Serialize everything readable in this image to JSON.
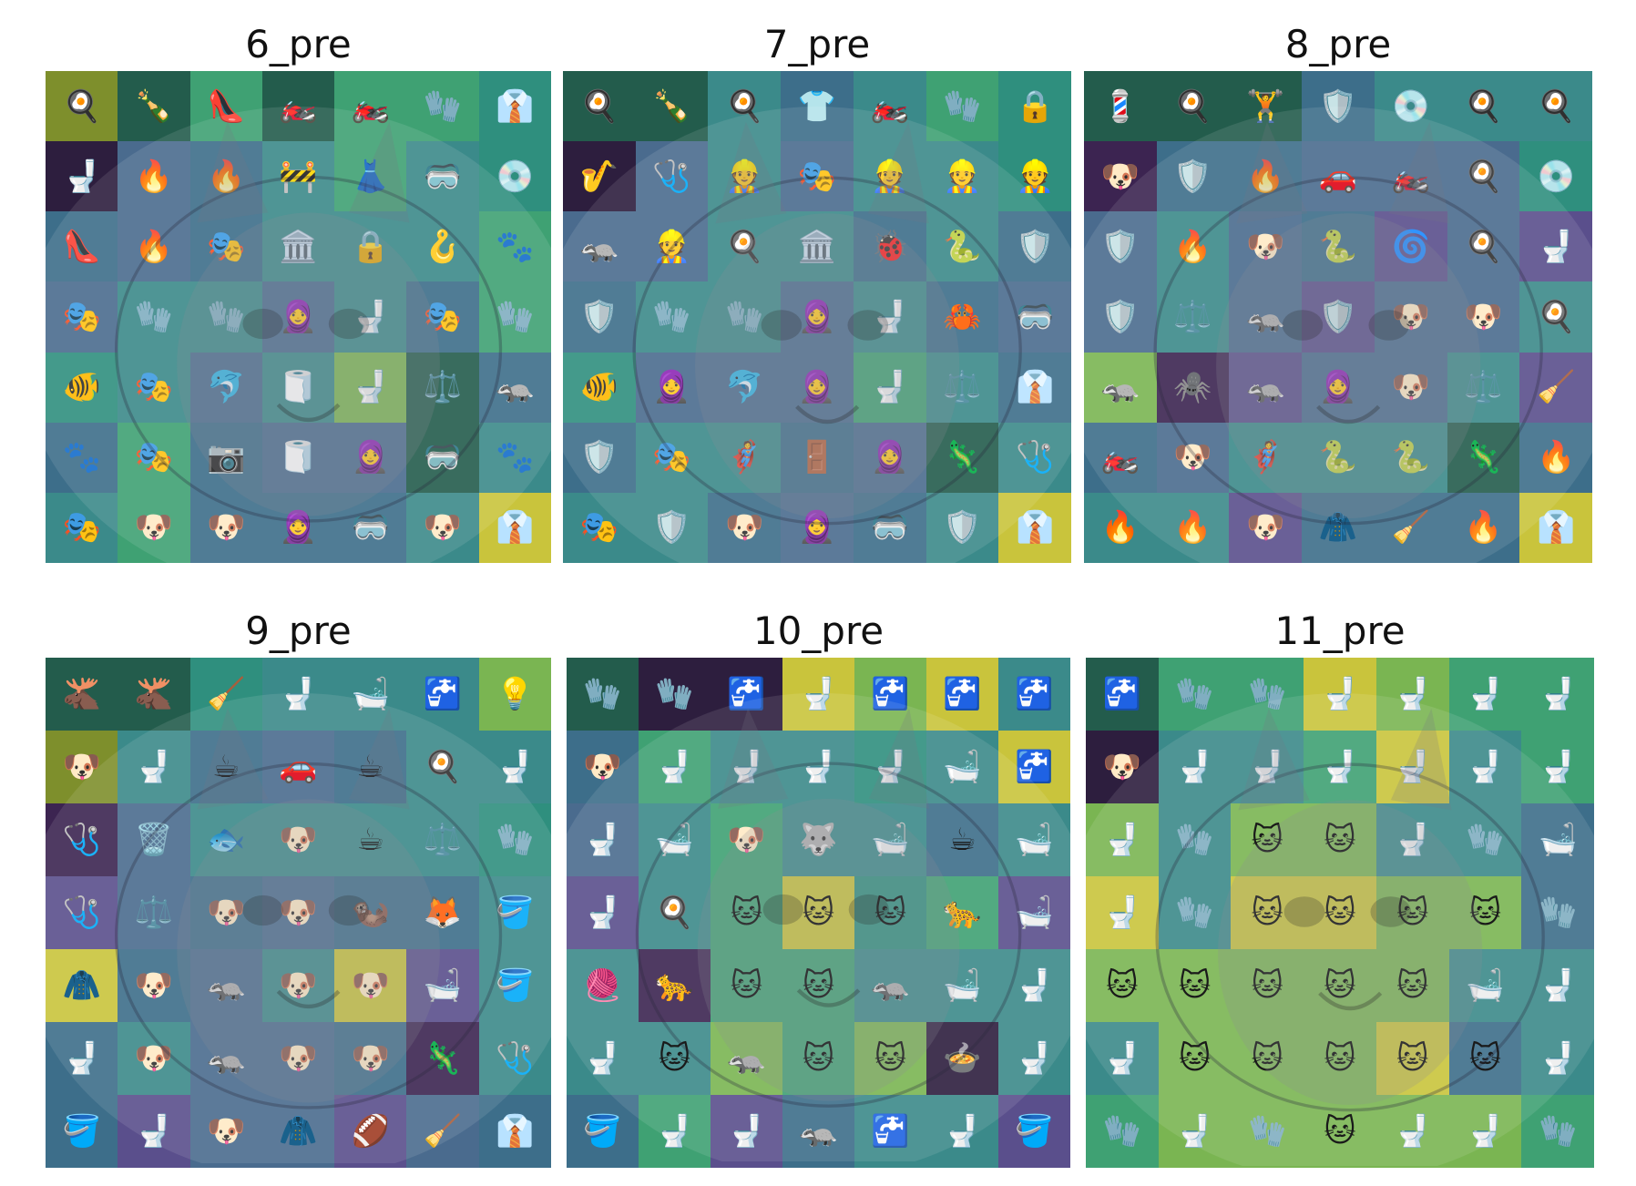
{
  "colors": {
    "y": "#c9c43c",
    "yg": "#7ab552",
    "g": "#3fa173",
    "tg": "#2f8f7e",
    "t": "#3b8a8a",
    "b": "#3d6e8a",
    "sb": "#4a6b8e",
    "pu": "#5a4f8c",
    "dp": "#3c2451",
    "dk": "#2d1e3e",
    "dg": "#235c4c",
    "ol": "#7e8f2c"
  },
  "panels": [
    {
      "title": "6_pre",
      "cells": [
        [
          "🍳",
          "🍾",
          "👠",
          "🏍️",
          "🏍️",
          "🧤",
          "👔"
        ],
        [
          "🚽",
          "🔥",
          "🔥",
          "🚧",
          "👗",
          "🥽",
          "💿"
        ],
        [
          "👠",
          "🔥",
          "🎭",
          "🏛️",
          "🔒",
          "🪝",
          "🐾"
        ],
        [
          "🎭",
          "🧤",
          "🧤",
          "🧕",
          "🚽",
          "🎭",
          "🧤"
        ],
        [
          "🐠",
          "🎭",
          "🐬",
          "🧻",
          "🚽",
          "⚖️",
          "🦡"
        ],
        [
          "🐾",
          "🎭",
          "📷",
          "🧻",
          "🧕",
          "🥽",
          "🐾"
        ],
        [
          "🎭",
          "🐶",
          "🐶",
          "🧕",
          "🥽",
          "🐶",
          "👔"
        ]
      ],
      "shades": [
        [
          "ol",
          "dg",
          "g",
          "dg",
          "g",
          "g",
          "tg"
        ],
        [
          "dk",
          "sb",
          "b",
          "t",
          "g",
          "t",
          "tg"
        ],
        [
          "b",
          "sb",
          "b",
          "t",
          "t",
          "t",
          "g"
        ],
        [
          "sb",
          "t",
          "t",
          "sb",
          "t",
          "b",
          "g"
        ],
        [
          "tg",
          "t",
          "sb",
          "t",
          "yg",
          "dg",
          "b"
        ],
        [
          "b",
          "g",
          "b",
          "sb",
          "sb",
          "dg",
          "t"
        ],
        [
          "t",
          "g",
          "b",
          "b",
          "b",
          "t",
          "y"
        ]
      ]
    },
    {
      "title": "7_pre",
      "cells": [
        [
          "🍳",
          "🍾",
          "🍳",
          "👕",
          "🏍️",
          "🧤",
          "🔒"
        ],
        [
          "🎷",
          "🩺",
          "👷",
          "🎭",
          "👷",
          "👷",
          "👷"
        ],
        [
          "🦡",
          "👷",
          "🍳",
          "🏛️",
          "🐞",
          "🐍",
          "🛡️"
        ],
        [
          "🛡️",
          "🧤",
          "🧤",
          "🧕",
          "🚽",
          "🦀",
          "🥽"
        ],
        [
          "🐠",
          "🧕",
          "🐬",
          "🧕",
          "🚽",
          "⚖️",
          "👔"
        ],
        [
          "🛡️",
          "🎭",
          "🦸",
          "🚪",
          "🧕",
          "🦎",
          "🩺"
        ],
        [
          "🎭",
          "🛡️",
          "🐶",
          "🧕",
          "🥽",
          "🛡️",
          "👔"
        ]
      ],
      "shades": [
        [
          "dg",
          "dg",
          "t",
          "b",
          "t",
          "g",
          "tg"
        ],
        [
          "dk",
          "sb",
          "t",
          "sb",
          "t",
          "t",
          "tg"
        ],
        [
          "sb",
          "sb",
          "t",
          "t",
          "b",
          "t",
          "b"
        ],
        [
          "b",
          "t",
          "t",
          "sb",
          "t",
          "b",
          "sb"
        ],
        [
          "tg",
          "sb",
          "sb",
          "sb",
          "g",
          "t",
          "b"
        ],
        [
          "b",
          "t",
          "t",
          "b",
          "sb",
          "dg",
          "t"
        ],
        [
          "t",
          "t",
          "b",
          "sb",
          "b",
          "t",
          "y"
        ]
      ]
    },
    {
      "title": "8_pre",
      "cells": [
        [
          "💈",
          "🍳",
          "🏋️",
          "🛡️",
          "💿",
          "🍳",
          "🍳"
        ],
        [
          "🐶",
          "🛡️",
          "🔥",
          "🚗",
          "🏍️",
          "🍳",
          "💿"
        ],
        [
          "🛡️",
          "🔥",
          "🐶",
          "🐍",
          "🌀",
          "🍳",
          "🚽"
        ],
        [
          "🛡️",
          "⚖️",
          "🦡",
          "🛡️",
          "🐶",
          "🐶",
          "🍳"
        ],
        [
          "🦡",
          "🕷️",
          "🦡",
          "🧕",
          "🐶",
          "⚖️",
          "🧹"
        ],
        [
          "🏍️",
          "🐶",
          "🦸",
          "🐍",
          "🐍",
          "🦎",
          "🔥"
        ],
        [
          "🔥",
          "🔥",
          "🐶",
          "🧥",
          "🧹",
          "🔥",
          "👔"
        ]
      ],
      "shades": [
        [
          "dg",
          "dg",
          "dg",
          "b",
          "t",
          "t",
          "t"
        ],
        [
          "dp",
          "b",
          "b",
          "sb",
          "sb",
          "sb",
          "tg"
        ],
        [
          "sb",
          "t",
          "sb",
          "b",
          "pu",
          "sb",
          "pu"
        ],
        [
          "sb",
          "t",
          "sb",
          "pu",
          "sb",
          "sb",
          "t"
        ],
        [
          "yg",
          "dp",
          "pu",
          "sb",
          "sb",
          "t",
          "pu"
        ],
        [
          "b",
          "sb",
          "t",
          "t",
          "t",
          "dg",
          "b"
        ],
        [
          "t",
          "t",
          "pu",
          "b",
          "b",
          "b",
          "y"
        ]
      ]
    },
    {
      "title": "9_pre",
      "cells": [
        [
          "🫎",
          "🫎",
          "🧹",
          "🚽",
          "🛁",
          "🚰",
          "💡"
        ],
        [
          "🐶",
          "🚽",
          "☕",
          "🚗",
          "☕",
          "🍳",
          "🚽"
        ],
        [
          "🩺",
          "🗑️",
          "🐟",
          "🐶",
          "☕",
          "⚖️",
          "🧤"
        ],
        [
          "🩺",
          "⚖️",
          "🐶",
          "🐶",
          "🦦",
          "🦊",
          "🪣"
        ],
        [
          "🧥",
          "🐶",
          "🦡",
          "🐶",
          "🐶",
          "🛁",
          "🪣"
        ],
        [
          "🚽",
          "🐶",
          "🦡",
          "🐶",
          "🐶",
          "🦎",
          "🩺"
        ],
        [
          "🪣",
          "🚽",
          "🐶",
          "🧥",
          "🏈",
          "🧹",
          "👔"
        ]
      ],
      "shades": [
        [
          "dg",
          "dg",
          "tg",
          "t",
          "t",
          "t",
          "yg"
        ],
        [
          "ol",
          "t",
          "b",
          "sb",
          "b",
          "t",
          "t"
        ],
        [
          "dp",
          "sb",
          "t",
          "t",
          "t",
          "t",
          "tg"
        ],
        [
          "pu",
          "sb",
          "b",
          "sb",
          "b",
          "b",
          "t"
        ],
        [
          "y",
          "b",
          "sb",
          "t",
          "y",
          "pu",
          "t"
        ],
        [
          "b",
          "t",
          "sb",
          "sb",
          "b",
          "dp",
          "t"
        ],
        [
          "b",
          "pu",
          "sb",
          "sb",
          "pu",
          "sb",
          "b"
        ]
      ]
    },
    {
      "title": "10_pre",
      "cells": [
        [
          "🧤",
          "🧤",
          "🚰",
          "🚽",
          "🚰",
          "🚰",
          "🚰"
        ],
        [
          "🐶",
          "🚽",
          "🚽",
          "🚽",
          "🚽",
          "🛁",
          "🚰"
        ],
        [
          "🚽",
          "🛁",
          "🐶",
          "🐺",
          "🛁",
          "☕",
          "🛁"
        ],
        [
          "🚽",
          "🍳",
          "🐱",
          "🐱",
          "🐱",
          "🐆",
          "🛁"
        ],
        [
          "🧶",
          "🐆",
          "🐱",
          "🐱",
          "🦡",
          "🛁",
          "🚽"
        ],
        [
          "🚽",
          "🐱",
          "🦡",
          "🐱",
          "🐱",
          "🍲",
          "🚽"
        ],
        [
          "🪣",
          "🚽",
          "🚽",
          "🦡",
          "🚰",
          "🚽",
          "🪣"
        ]
      ],
      "shades": [
        [
          "dg",
          "dk",
          "dk",
          "y",
          "yg",
          "y",
          "t"
        ],
        [
          "b",
          "g",
          "t",
          "t",
          "tg",
          "t",
          "y"
        ],
        [
          "sb",
          "t",
          "g",
          "t",
          "t",
          "b",
          "t"
        ],
        [
          "pu",
          "t",
          "g",
          "y",
          "tg",
          "g",
          "pu"
        ],
        [
          "t",
          "dp",
          "g",
          "g",
          "t",
          "t",
          "t"
        ],
        [
          "t",
          "t",
          "yg",
          "g",
          "yg",
          "dk",
          "t"
        ],
        [
          "b",
          "g",
          "pu",
          "b",
          "t",
          "t",
          "pu"
        ]
      ]
    },
    {
      "title": "11_pre",
      "cells": [
        [
          "🚰",
          "🧤",
          "🧤",
          "🚽",
          "🚽",
          "🚽",
          "🚽"
        ],
        [
          "🐶",
          "🚽",
          "🚽",
          "🚽",
          "🚽",
          "🚽",
          "🚽"
        ],
        [
          "🚽",
          "🧤",
          "🐱",
          "🐱",
          "🚽",
          "🧤",
          "🛁"
        ],
        [
          "🚽",
          "🧤",
          "🐱",
          "🐱",
          "🐱",
          "🐱",
          "🧤"
        ],
        [
          "🐱",
          "🐱",
          "🐱",
          "🐱",
          "🐱",
          "🛁",
          "🚽"
        ],
        [
          "🚽",
          "🐱",
          "🐱",
          "🐱",
          "🐱",
          "🐱",
          "🚽"
        ],
        [
          "🧤",
          "🚽",
          "🧤",
          "🐱",
          "🚽",
          "🚽",
          "🧤"
        ]
      ],
      "shades": [
        [
          "dg",
          "g",
          "g",
          "y",
          "yg",
          "g",
          "g"
        ],
        [
          "dk",
          "t",
          "t",
          "g",
          "y",
          "t",
          "g"
        ],
        [
          "yg",
          "t",
          "yg",
          "yg",
          "t",
          "t",
          "b"
        ],
        [
          "y",
          "t",
          "y",
          "y",
          "yg",
          "yg",
          "b"
        ],
        [
          "yg",
          "yg",
          "yg",
          "yg",
          "yg",
          "t",
          "t"
        ],
        [
          "t",
          "yg",
          "yg",
          "yg",
          "y",
          "b",
          "t"
        ],
        [
          "g",
          "yg",
          "yg",
          "yg",
          "yg",
          "yg",
          "g"
        ]
      ]
    }
  ]
}
